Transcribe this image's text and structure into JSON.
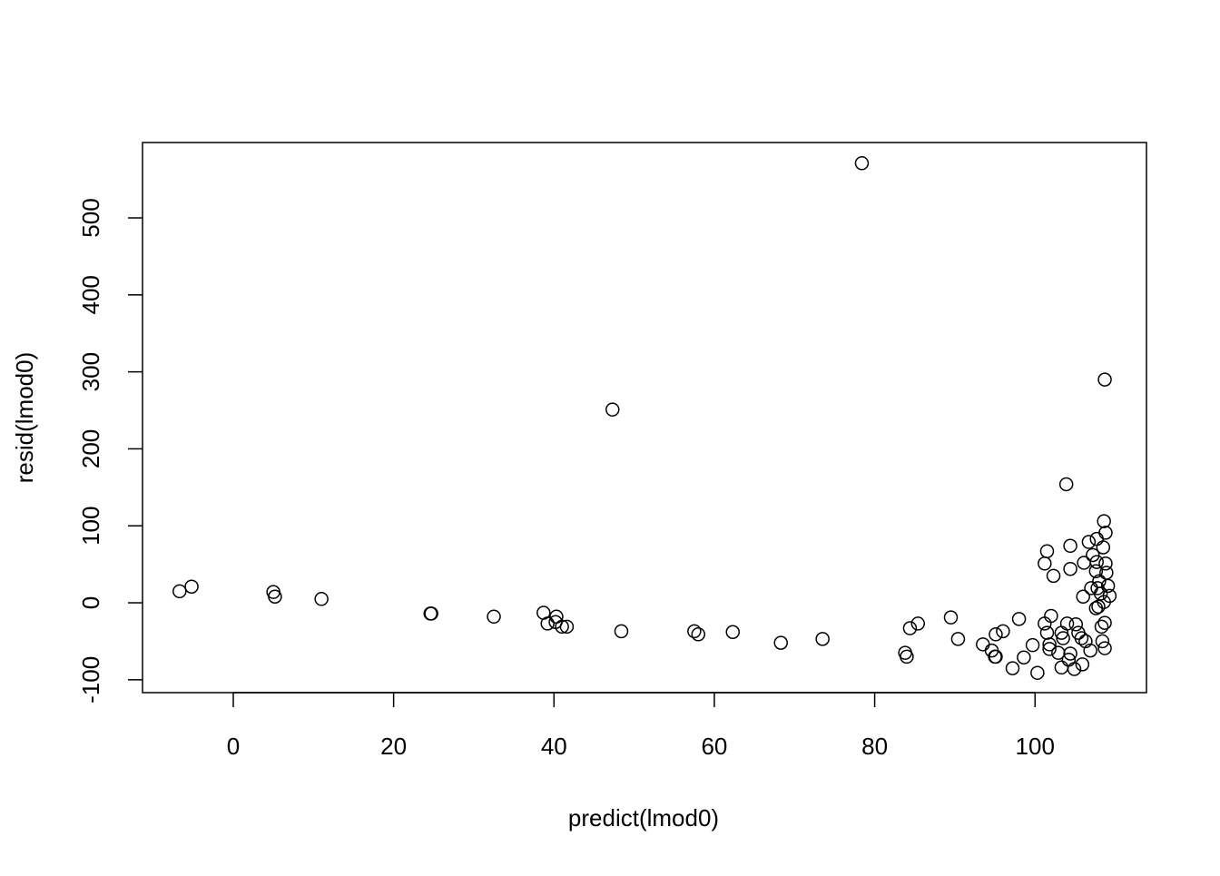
{
  "chart_data": {
    "type": "scatter",
    "x_label": "predict(lmod0)",
    "y_label": "resid(lmod0)",
    "x": [
      -6.7,
      -5.2,
      5.0,
      5.2,
      11.0,
      24.6,
      24.7,
      32.5,
      38.7,
      39.2,
      40.3,
      40.2,
      41.0,
      41.6,
      48.4,
      47.3,
      57.5,
      58.0,
      62.3,
      68.3,
      73.5,
      78.4,
      83.8,
      84.0,
      84.4,
      85.4,
      89.5,
      90.4,
      93.5,
      94.6,
      95.0,
      95.1,
      95.1,
      96.0,
      97.2,
      98.0,
      98.6,
      99.7,
      100.3,
      101.2,
      101.2,
      101.5,
      101.5,
      101.8,
      101.8,
      102.0,
      102.3,
      102.9,
      103.3,
      103.3,
      103.5,
      103.9,
      104.0,
      104.2,
      104.4,
      104.4,
      104.4,
      104.9,
      105.1,
      105.4,
      105.8,
      105.9,
      106.0,
      106.1,
      106.3,
      106.7,
      106.9,
      107.0,
      107.2,
      107.6,
      107.6,
      107.7,
      107.7,
      107.8,
      107.9,
      108.0,
      108.2,
      108.3,
      108.4,
      108.5,
      108.6,
      108.6,
      108.7,
      108.7,
      108.7,
      108.8,
      108.8,
      108.9,
      109.1,
      109.3
    ],
    "y": [
      15,
      21,
      14,
      8,
      5,
      -14,
      -14,
      -18,
      -13,
      -27,
      -18,
      -25,
      -31,
      -31,
      -37,
      251,
      -37,
      -41,
      -38,
      -52,
      -47,
      571,
      -65,
      -70,
      -33,
      -27,
      -19,
      -47,
      -54,
      -62,
      -70,
      -70,
      -41,
      -37,
      -85,
      -21,
      -71,
      -55,
      -91,
      -27,
      51,
      67,
      -39,
      -54,
      -60,
      -17,
      35,
      -65,
      -84,
      -39,
      -46,
      154,
      -27,
      -74,
      -66,
      44,
      74,
      -86,
      -28,
      -39,
      -46,
      -80,
      8,
      52,
      -50,
      79,
      -62,
      19,
      62,
      41,
      -7,
      53,
      83,
      19,
      -5,
      28,
      12,
      -31,
      -50,
      72,
      106,
      1,
      -26,
      -59,
      290,
      91,
      51,
      39,
      22,
      9
    ],
    "xlim": [
      -11.32,
      113.9
    ],
    "ylim": [
      -116.7,
      597.9
    ],
    "xticks": [
      0,
      20,
      40,
      60,
      80,
      100
    ],
    "yticks": [
      -100,
      0,
      100,
      200,
      300,
      400,
      500
    ],
    "color": "#000000"
  }
}
